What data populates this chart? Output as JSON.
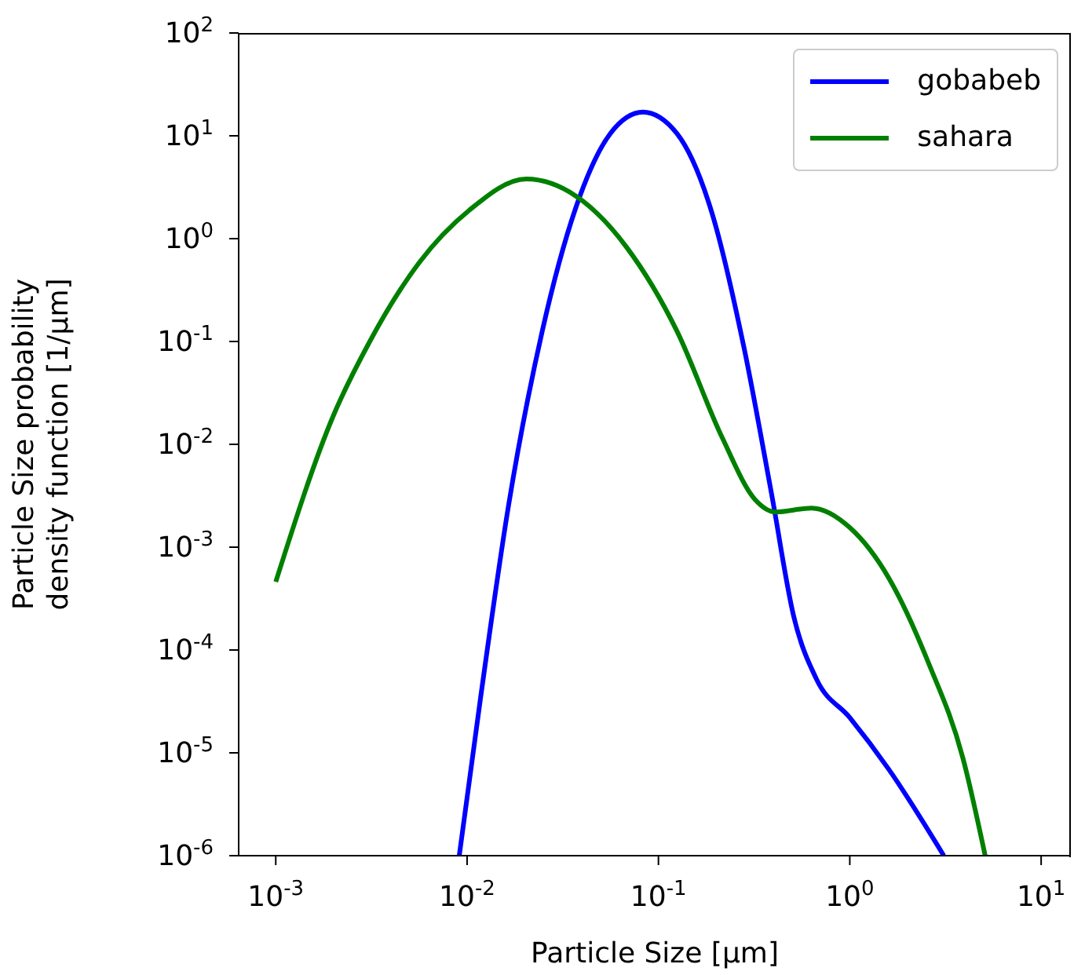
{
  "chart_data": {
    "type": "line",
    "xlabel": "Particle Size [μm]",
    "ylabel": "Particle Size probability\ndensity function [1/μm]",
    "log": "xy",
    "grid": false,
    "legend": "top right",
    "marker": "none",
    "line_style": "solid",
    "xlim": [
      0.00064,
      14.3
    ],
    "ylim": [
      1e-06,
      100
    ],
    "xticks": [
      {
        "value": 0.001,
        "label": "10$^{-3}$"
      },
      {
        "value": 0.01,
        "label": "10$^{-2}$"
      },
      {
        "value": 0.1,
        "label": "10$^{-1}$"
      },
      {
        "value": 1,
        "label": "10$^{0}$"
      },
      {
        "value": 10,
        "label": "10$^{1}$"
      }
    ],
    "yticks": [
      {
        "value": 1e-06,
        "label": "10$^{-6}$"
      },
      {
        "value": 1e-05,
        "label": "10$^{-5}$"
      },
      {
        "value": 0.0001,
        "label": "10$^{-4}$"
      },
      {
        "value": 0.001,
        "label": "10$^{-3}$"
      },
      {
        "value": 0.01,
        "label": "10$^{-2}$"
      },
      {
        "value": 0.1,
        "label": "10$^{-1}$"
      },
      {
        "value": 1,
        "label": "10$^{0}$"
      },
      {
        "value": 10,
        "label": "10$^{1}$"
      },
      {
        "value": 100,
        "label": "10$^{2}$"
      }
    ],
    "series": [
      {
        "name": "gobabeb",
        "color": "#0000ff",
        "x": [
          0.0091,
          0.0117,
          0.0165,
          0.0247,
          0.037,
          0.056,
          0.083,
          0.125,
          0.19,
          0.28,
          0.39,
          0.51,
          0.67,
          1.0,
          1.6,
          3.1
        ],
        "values": [
          1e-06,
          3.2e-05,
          0.0026,
          0.126,
          2.0,
          10.5,
          17,
          10.5,
          1.8,
          0.087,
          0.0033,
          0.00021,
          5.2e-05,
          2.2e-05,
          6.9e-06,
          1e-06
        ]
      },
      {
        "name": "sahara",
        "color": "#008000",
        "x": [
          0.001,
          0.002,
          0.0031,
          0.0056,
          0.0103,
          0.0204,
          0.037,
          0.068,
          0.125,
          0.215,
          0.32,
          0.41,
          0.63,
          1.0,
          1.6,
          2.57,
          3.9,
          5.1
        ],
        "values": [
          0.00046,
          0.019,
          0.1,
          0.58,
          1.9,
          3.8,
          2.6,
          0.83,
          0.126,
          0.0117,
          0.0029,
          0.0022,
          0.0024,
          0.00155,
          0.0005,
          7.6e-05,
          8.9e-06,
          1e-06
        ]
      }
    ]
  }
}
